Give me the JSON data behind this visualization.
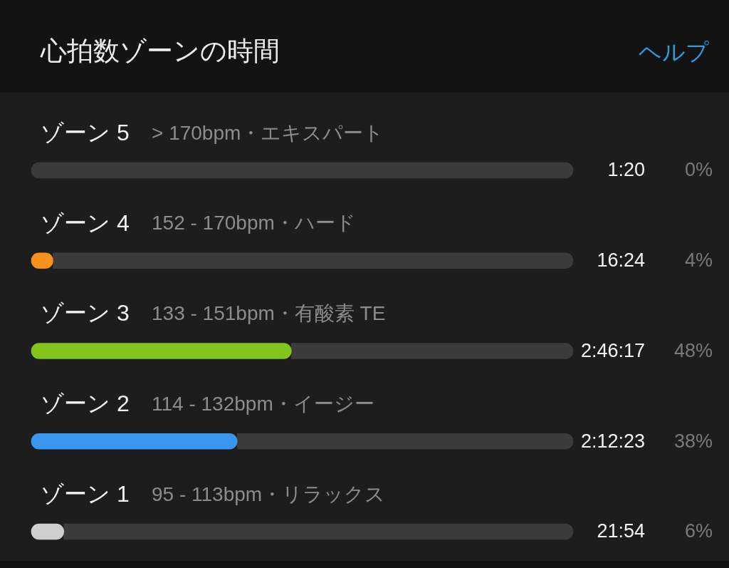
{
  "chart_data": {
    "type": "bar",
    "orientation": "horizontal",
    "stacked": true,
    "title": "心拍数ゾーンの時間",
    "categories": [
      "ゾーン 5",
      "ゾーン 4",
      "ゾーン 3",
      "ゾーン 2",
      "ゾーン 1"
    ],
    "series": [
      {
        "colors": [
          null,
          "#f7901f",
          "#80c41c",
          "#3b96ef",
          "#cfcfcf"
        ],
        "values": [
          0,
          4,
          48,
          38,
          6
        ],
        "value_labels": [
          "0%",
          "4%",
          "48%",
          "38%",
          "6%"
        ]
      },
      {
        "color": "#3b3b3b",
        "values": [
          100,
          96,
          52,
          62,
          94
        ]
      }
    ],
    "xlim": [
      0,
      100
    ],
    "tick_labels": "y",
    "annotations": [
      "> 170bpm・エキスパート",
      "152 - 170bpm・ハード",
      "133 - 151bpm・有酸素 TE",
      "114 - 132bpm・イージー",
      "95 - 113bpm・リラックス",
      "1:20",
      "16:24",
      "2:46:17",
      "2:12:23",
      "21:54",
      "ヘルプ"
    ]
  }
}
